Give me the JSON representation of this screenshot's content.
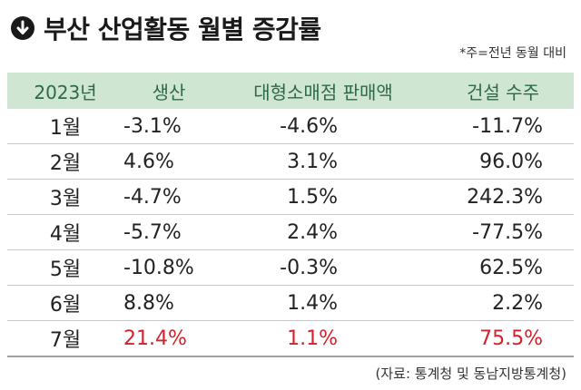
{
  "title": "부산 산업활동 월별 증감률",
  "icon": "down-arrow-circle-icon",
  "note": "*주=전년 동월 대비",
  "table": {
    "headers": [
      "2023년",
      "생산",
      "대형소매점 판매액",
      "건설 수주"
    ],
    "rows": [
      [
        "1월",
        "-3.1%",
        "-4.6%",
        "-11.7%"
      ],
      [
        "2월",
        "4.6%",
        "3.1%",
        "96.0%"
      ],
      [
        "3월",
        "-4.7%",
        "1.5%",
        "242.3%"
      ],
      [
        "4월",
        "-5.7%",
        "2.4%",
        "-77.5%"
      ],
      [
        "5월",
        "-10.8%",
        "-0.3%",
        "62.5%"
      ],
      [
        "6월",
        "8.8%",
        "1.4%",
        "2.2%"
      ],
      [
        "7월",
        "21.4%",
        "1.1%",
        "75.5%"
      ]
    ],
    "highlight_color": "#d6202a",
    "header_bg": "#cfe6d2"
  },
  "source": "(자료: 통계청 및 동남지방통계청)"
}
